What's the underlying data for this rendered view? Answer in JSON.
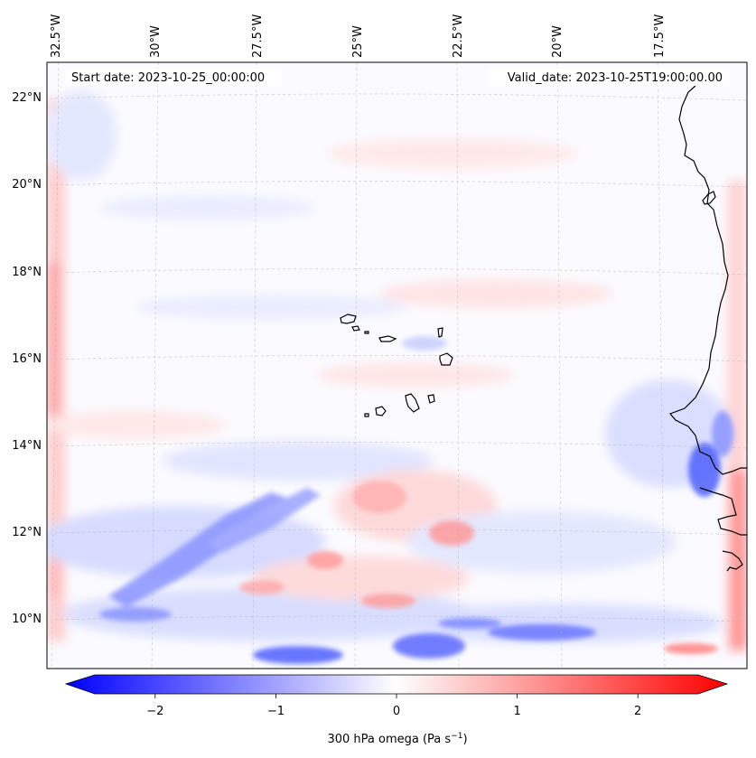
{
  "map": {
    "start_date_label": "Start date: 2023-10-25_00:00:00",
    "valid_date_label": "Valid_date: 2023-10-25T19:00:00.00",
    "lon_labels": [
      "32.5°W",
      "30°W",
      "27.5°W",
      "25°W",
      "22.5°W",
      "20°W",
      "17.5°W"
    ],
    "lat_labels": [
      "22°N",
      "20°N",
      "18°N",
      "16°N",
      "14°N",
      "12°N",
      "10°N"
    ],
    "colors": {
      "negative": "#0000ff",
      "neutral": "#ffffff",
      "positive": "#ff0000",
      "coastline": "#000000",
      "gridline": "#b0b0b0"
    }
  },
  "colorbar": {
    "ticks": [
      "−2",
      "−1",
      "0",
      "1",
      "2"
    ],
    "tick_values": [
      -2,
      -1,
      0,
      1,
      2
    ],
    "range": [
      -2.5,
      2.5
    ],
    "label_main": "300 hPa omega (Pa s",
    "label_exp": "−1",
    "label_close": ")"
  }
}
